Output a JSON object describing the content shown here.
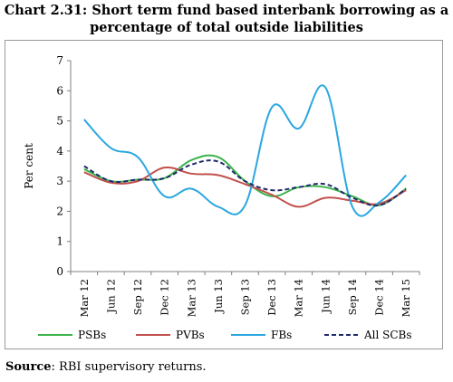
{
  "title_line1": "Chart 2.31: Short term fund based interbank borrowing as a",
  "title_line2": "percentage of total outside liabilities",
  "source_label": "Source",
  "source_text": ": RBI supervisory returns.",
  "chart_data": {
    "type": "line",
    "ylabel": "Per cent",
    "ylim": [
      0,
      7
    ],
    "yticks": [
      0,
      1,
      2,
      3,
      4,
      5,
      6,
      7
    ],
    "categories": [
      "Mar 12",
      "Jun 12",
      "Sep 12",
      "Dec 12",
      "Mar 13",
      "Jun 13",
      "Sep 13",
      "Dec 13",
      "Mar 14",
      "Jun 14",
      "Sep 14",
      "Dec 14",
      "Mar 15"
    ],
    "grid": false,
    "legend_position": "bottom",
    "series": [
      {
        "name": "PSBs",
        "color": "#3cb44b",
        "dash": "solid",
        "values": [
          3.4,
          3.0,
          3.05,
          3.1,
          3.7,
          3.8,
          3.0,
          2.5,
          2.8,
          2.8,
          2.5,
          2.2,
          2.75
        ]
      },
      {
        "name": "PVBs",
        "color": "#c0504d",
        "dash": "solid",
        "values": [
          3.3,
          2.95,
          3.0,
          3.45,
          3.25,
          3.2,
          2.9,
          2.55,
          2.15,
          2.45,
          2.35,
          2.25,
          2.7
        ]
      },
      {
        "name": "FBs",
        "color": "#2aa7e0",
        "dash": "solid",
        "values": [
          5.05,
          4.1,
          3.8,
          2.5,
          2.75,
          2.15,
          2.2,
          5.45,
          4.75,
          6.1,
          2.15,
          2.3,
          3.2
        ]
      },
      {
        "name": "All SCBs",
        "color": "#1f2a6b",
        "dash": "dashed",
        "values": [
          3.5,
          3.0,
          3.05,
          3.1,
          3.55,
          3.65,
          3.0,
          2.7,
          2.8,
          2.9,
          2.45,
          2.2,
          2.75
        ]
      }
    ]
  }
}
